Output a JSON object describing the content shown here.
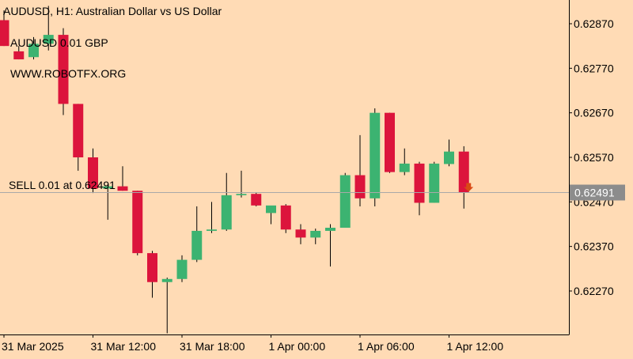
{
  "header": {
    "symbol_line": "AUDUSD, H1:  Australian Dollar vs US Dollar",
    "position_label": "AUDUSD 0.01 GBP",
    "website": "WWW.ROBOTFX.ORG",
    "order_label": "SELL 0.01 at 0.62491",
    "current_price_tag": "0.62491"
  },
  "colors": {
    "background": "#ffdbb5",
    "bull": "#3cb371",
    "bear": "#dc143c",
    "wick": "#000000",
    "price_line": "#a9a9a9",
    "price_tag_bg": "#8c8c8c",
    "sell_arrow": "#d94a16",
    "axis": "#000000",
    "text": "#000000"
  },
  "chart_data": {
    "type": "candlestick",
    "title": "AUDUSD, H1:  Australian Dollar vs US Dollar",
    "timeframe": "H1",
    "ylim": [
      0.6213,
      0.6295
    ],
    "y_ticks": [
      "0.62870",
      "0.62770",
      "0.62670",
      "0.62570",
      "0.62470",
      "0.62370",
      "0.62270"
    ],
    "x_ticks": [
      {
        "label": "31 Mar 2025",
        "index": 0
      },
      {
        "label": "31 Mar 12:00",
        "index": 6
      },
      {
        "label": "31 Mar 18:00",
        "index": 12
      },
      {
        "label": "1 Apr 00:00",
        "index": 18
      },
      {
        "label": "1 Apr 06:00",
        "index": 24
      },
      {
        "label": "1 Apr 12:00",
        "index": 30
      }
    ],
    "current_price": 0.62491,
    "order": {
      "side": "SELL",
      "lots": 0.01,
      "price": 0.62491
    },
    "candles": [
      {
        "o": 0.62878,
        "h": 0.629,
        "l": 0.6282,
        "c": 0.6282
      },
      {
        "o": 0.62808,
        "h": 0.6282,
        "l": 0.6279,
        "c": 0.6279
      },
      {
        "o": 0.62795,
        "h": 0.6284,
        "l": 0.6279,
        "c": 0.62825
      },
      {
        "o": 0.62825,
        "h": 0.6291,
        "l": 0.6281,
        "c": 0.62845
      },
      {
        "o": 0.62845,
        "h": 0.6286,
        "l": 0.62665,
        "c": 0.6269
      },
      {
        "o": 0.6269,
        "h": 0.6269,
        "l": 0.6254,
        "c": 0.6257
      },
      {
        "o": 0.6257,
        "h": 0.6259,
        "l": 0.6249,
        "c": 0.625
      },
      {
        "o": 0.625,
        "h": 0.6251,
        "l": 0.6243,
        "c": 0.62505
      },
      {
        "o": 0.62505,
        "h": 0.6255,
        "l": 0.62495,
        "c": 0.62495
      },
      {
        "o": 0.62495,
        "h": 0.62495,
        "l": 0.6235,
        "c": 0.62355
      },
      {
        "o": 0.62355,
        "h": 0.6236,
        "l": 0.62255,
        "c": 0.6229
      },
      {
        "o": 0.6229,
        "h": 0.623,
        "l": 0.62175,
        "c": 0.62297
      },
      {
        "o": 0.62297,
        "h": 0.6235,
        "l": 0.6229,
        "c": 0.6234
      },
      {
        "o": 0.6234,
        "h": 0.6246,
        "l": 0.62335,
        "c": 0.62405
      },
      {
        "o": 0.62405,
        "h": 0.6247,
        "l": 0.624,
        "c": 0.62408
      },
      {
        "o": 0.62408,
        "h": 0.62535,
        "l": 0.62405,
        "c": 0.62485
      },
      {
        "o": 0.62485,
        "h": 0.6254,
        "l": 0.6248,
        "c": 0.62488
      },
      {
        "o": 0.62488,
        "h": 0.6249,
        "l": 0.6246,
        "c": 0.62462
      },
      {
        "o": 0.62445,
        "h": 0.6246,
        "l": 0.6242,
        "c": 0.62462
      },
      {
        "o": 0.62462,
        "h": 0.62465,
        "l": 0.624,
        "c": 0.62408
      },
      {
        "o": 0.62408,
        "h": 0.6242,
        "l": 0.62375,
        "c": 0.6239
      },
      {
        "o": 0.6239,
        "h": 0.6241,
        "l": 0.62375,
        "c": 0.62405
      },
      {
        "o": 0.62405,
        "h": 0.6242,
        "l": 0.62325,
        "c": 0.62412
      },
      {
        "o": 0.62412,
        "h": 0.62535,
        "l": 0.62412,
        "c": 0.6253
      },
      {
        "o": 0.6253,
        "h": 0.6262,
        "l": 0.6246,
        "c": 0.62478
      },
      {
        "o": 0.62478,
        "h": 0.6268,
        "l": 0.6246,
        "c": 0.6267
      },
      {
        "o": 0.6267,
        "h": 0.6267,
        "l": 0.62535,
        "c": 0.62537
      },
      {
        "o": 0.62537,
        "h": 0.6259,
        "l": 0.6253,
        "c": 0.62556
      },
      {
        "o": 0.62556,
        "h": 0.6256,
        "l": 0.6244,
        "c": 0.62468
      },
      {
        "o": 0.62468,
        "h": 0.6256,
        "l": 0.62468,
        "c": 0.62556
      },
      {
        "o": 0.62555,
        "h": 0.6261,
        "l": 0.6255,
        "c": 0.62583
      },
      {
        "o": 0.62583,
        "h": 0.62595,
        "l": 0.62455,
        "c": 0.62491
      }
    ]
  }
}
